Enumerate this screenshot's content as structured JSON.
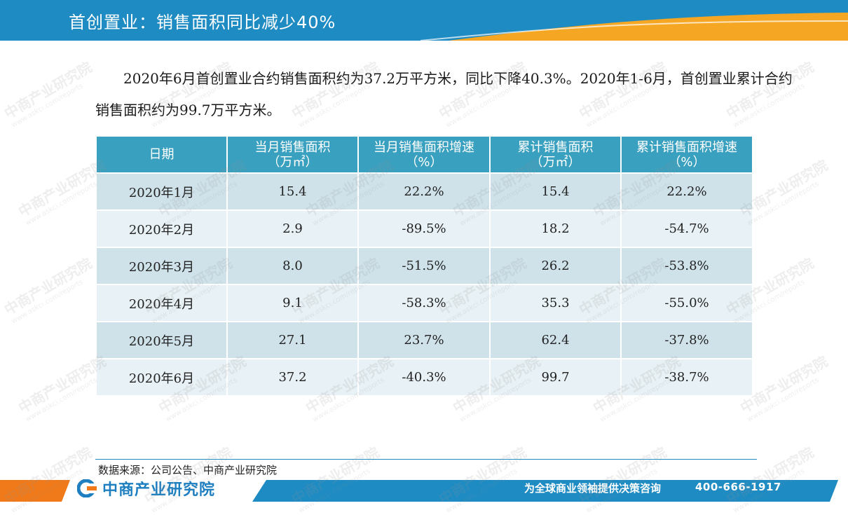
{
  "header": {
    "title": "首创置业：销售面积同比减少40%",
    "bar_color": "#1e8bc3",
    "accent_color": "#f5a623"
  },
  "intro": {
    "text": "2020年6月首创置业合约销售面积约为37.2万平方米，同比下降40.3%。2020年1-6月，首创置业累计合约销售面积约为99.7万平方米。"
  },
  "table": {
    "headers": [
      {
        "line1": "日期",
        "line2": ""
      },
      {
        "line1": "当月销售面积",
        "line2": "（万㎡）"
      },
      {
        "line1": "当月销售面积增速",
        "line2": "（%）"
      },
      {
        "line1": "累计销售面积",
        "line2": "（万㎡）"
      },
      {
        "line1": "累计销售面积增速",
        "line2": "（%）"
      }
    ],
    "rows": [
      [
        "2020年1月",
        "15.4",
        "22.2%",
        "15.4",
        "22.2%"
      ],
      [
        "2020年2月",
        "2.9",
        "-89.5%",
        "18.2",
        "-54.7%"
      ],
      [
        "2020年3月",
        "8.0",
        "-51.5%",
        "26.2",
        "-53.8%"
      ],
      [
        "2020年4月",
        "9.1",
        "-58.3%",
        "35.3",
        "-55.0%"
      ],
      [
        "2020年5月",
        "27.1",
        "23.7%",
        "62.4",
        "-37.8%"
      ],
      [
        "2020年6月",
        "37.2",
        "-40.3%",
        "99.7",
        "-38.7%"
      ]
    ],
    "header_color": "#3aa0bf",
    "row_color_odd": "#cfe2ea",
    "row_color_even": "#e8f1f5"
  },
  "footer": {
    "source": "数据来源：公司公告、中商产业研究院",
    "logo_text": "中商产业研究院",
    "slogan": "为全球商业领袖提供决策咨询",
    "phone": "400-666-1917"
  },
  "watermark": {
    "text": "中商产业研究院",
    "url": "www.askci.com/reports"
  }
}
